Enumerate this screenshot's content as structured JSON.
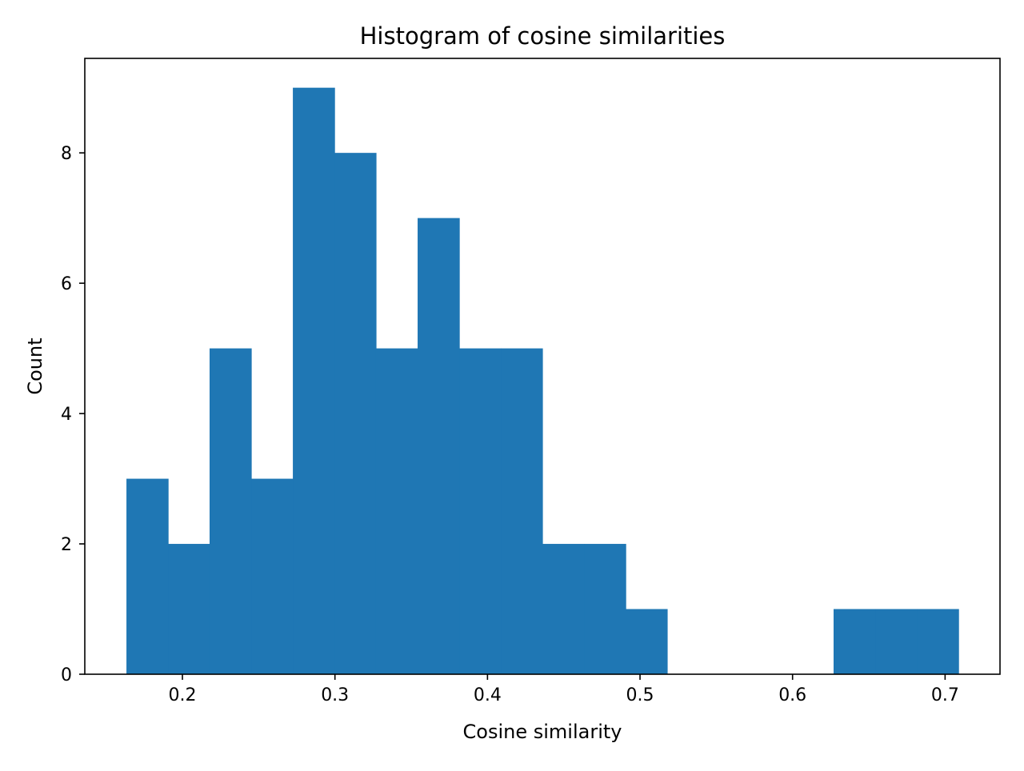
{
  "chart_data": {
    "type": "bar",
    "title": "Histogram of cosine similarities",
    "xlabel": "Cosine similarity",
    "ylabel": "Count",
    "bin_edges": [
      0.1633,
      0.1906,
      0.2178,
      0.2451,
      0.2724,
      0.2997,
      0.3269,
      0.3542,
      0.3815,
      0.4088,
      0.436,
      0.4633,
      0.4906,
      0.5178,
      0.5451,
      0.5724,
      0.5997,
      0.6269,
      0.6542,
      0.6815,
      0.7088
    ],
    "values": [
      3,
      2,
      5,
      3,
      9,
      8,
      5,
      7,
      5,
      5,
      2,
      2,
      1,
      0,
      0,
      0,
      0,
      1,
      1,
      1
    ],
    "xlim": [
      0.136,
      0.736
    ],
    "ylim": [
      0,
      9.45
    ],
    "x_ticks": [
      0.2,
      0.3,
      0.4,
      0.5,
      0.6,
      0.7
    ],
    "x_tick_labels": [
      "0.2",
      "0.3",
      "0.4",
      "0.5",
      "0.6",
      "0.7"
    ],
    "y_ticks": [
      0,
      2,
      4,
      6,
      8
    ],
    "y_tick_labels": [
      "0",
      "2",
      "4",
      "6",
      "8"
    ],
    "bar_color": "#1f77b4",
    "grid": false,
    "legend": "none"
  }
}
